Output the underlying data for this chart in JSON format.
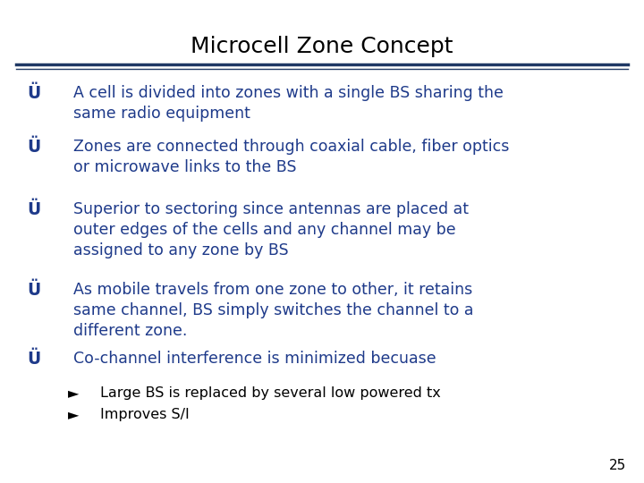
{
  "title": "Microcell Zone Concept",
  "title_color": "#000000",
  "title_fontsize": 18,
  "title_weight": "normal",
  "separator_color": "#1F3864",
  "bullet_color": "#1E3A8A",
  "text_color": "#1E3A8A",
  "sub_bullet_color": "#000000",
  "sub_text_color": "#000000",
  "page_number": "25",
  "page_number_color": "#000000",
  "background_color": "#FFFFFF",
  "bullets": [
    "A cell is divided into zones with a single BS sharing the\nsame radio equipment",
    "Zones are connected through coaxial cable, fiber optics\nor microwave links to the BS",
    "Superior to sectoring since antennas are placed at\nouter edges of the cells and any channel may be\nassigned to any zone by BS",
    "As mobile travels from one zone to other, it retains\nsame channel, BS simply switches the channel to a\ndifferent zone.",
    "Co-channel interference is minimized becuase"
  ],
  "sub_bullets": [
    "Large BS is replaced by several low powered tx",
    "Improves S/I"
  ],
  "bullet_fontsize": 12.5,
  "sub_bullet_fontsize": 11.5,
  "bullet_symbol": "Ü",
  "sub_bullet_symbol": "►"
}
